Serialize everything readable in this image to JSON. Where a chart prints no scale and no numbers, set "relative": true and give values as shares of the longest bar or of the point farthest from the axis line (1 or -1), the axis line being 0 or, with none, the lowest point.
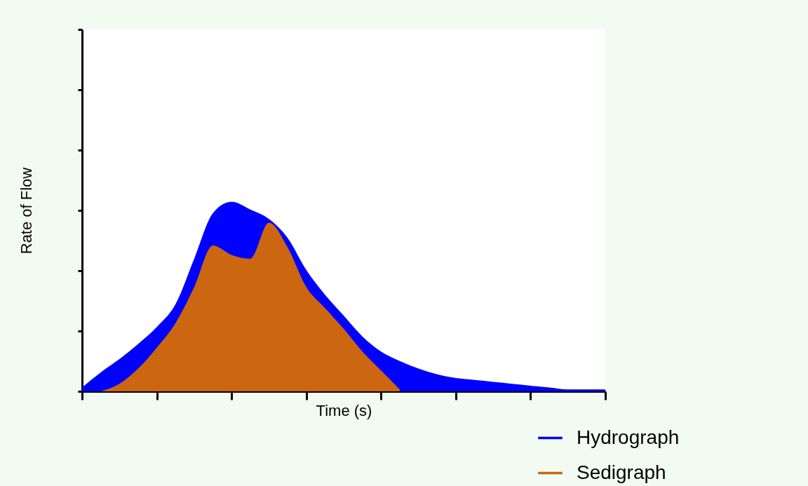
{
  "chart_data": {
    "type": "area",
    "xlabel": "Time (s)",
    "ylabel": "Rate of Flow",
    "relative": true,
    "legend": "bottom right",
    "categories": [
      null,
      null,
      null,
      null,
      null,
      null,
      null,
      null,
      null,
      null,
      null,
      null,
      null,
      null,
      null,
      null,
      null,
      null,
      null,
      null,
      null,
      null,
      null,
      null,
      null,
      null,
      null,
      null,
      null
    ],
    "series": [
      {
        "name": "Hydrograph",
        "color": "#0000ff",
        "values": [
          0.02,
          0.1,
          0.17,
          0.25,
          0.34,
          0.46,
          0.7,
          0.94,
          1.0,
          0.96,
          0.91,
          0.81,
          0.64,
          0.51,
          0.4,
          0.29,
          0.21,
          0.16,
          0.12,
          0.09,
          0.07,
          0.06,
          0.05,
          0.04,
          0.03,
          0.02,
          0.01,
          0.01,
          0.01
        ]
      },
      {
        "name": "Sedigraph",
        "color": "#cc6611",
        "values": [
          null,
          0,
          0.04,
          0.12,
          0.23,
          0.36,
          0.55,
          0.77,
          0.72,
          0.7,
          0.89,
          0.76,
          0.55,
          0.44,
          0.33,
          0.21,
          0.11,
          0.01,
          null,
          null,
          null,
          null,
          null,
          null,
          null,
          null,
          null,
          null,
          null
        ]
      }
    ]
  }
}
